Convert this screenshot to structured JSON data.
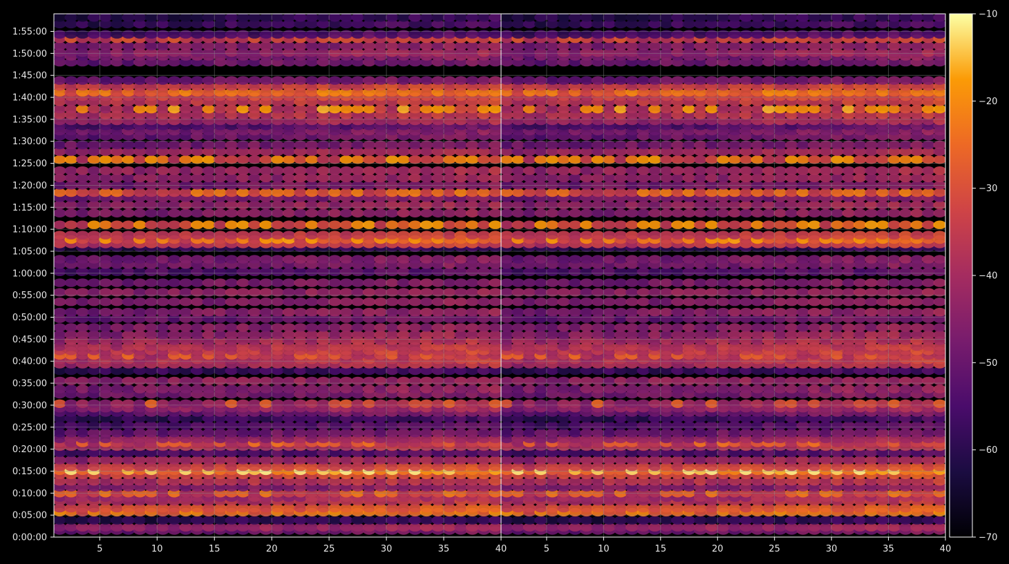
{
  "chart_data": {
    "type": "heatmap",
    "title": "",
    "xlabel": "",
    "ylabel": "",
    "colormap": "inferno",
    "background_color": "#000000",
    "grid": true,
    "grid_color": "#8a8a8a",
    "panels": [
      {
        "name": "",
        "xlim": [
          1,
          40
        ],
        "x_ticks": [
          5,
          10,
          15,
          20,
          25,
          30,
          35,
          40
        ],
        "x_tick_labels": [
          "5",
          "10",
          "15",
          "20",
          "25",
          "30",
          "35",
          "40"
        ]
      },
      {
        "name": "",
        "xlim": [
          1,
          40
        ],
        "x_ticks": [
          5,
          10,
          15,
          20,
          25,
          30,
          35,
          40
        ],
        "x_tick_labels": [
          "5",
          "10",
          "15",
          "20",
          "25",
          "30",
          "35",
          "40"
        ]
      }
    ],
    "y_axis": {
      "unit": "seconds",
      "ylim": [
        0,
        7140
      ],
      "ticks": [
        0,
        300,
        600,
        900,
        1200,
        1500,
        1800,
        2100,
        2400,
        2700,
        3000,
        3300,
        3600,
        3900,
        4200,
        4500,
        4800,
        5100,
        5400,
        5700,
        6000,
        6300,
        6600,
        6900
      ],
      "tick_labels": [
        "0:00:00",
        "0:05:00",
        "0:10:00",
        "0:15:00",
        "0:20:00",
        "0:25:00",
        "0:30:00",
        "0:35:00",
        "0:40:00",
        "0:45:00",
        "0:50:00",
        "0:55:00",
        "1:00:00",
        "1:05:00",
        "1:10:00",
        "1:15:00",
        "1:20:00",
        "1:25:00",
        "1:30:00",
        "1:35:00",
        "1:40:00",
        "1:45:00",
        "1:50:00",
        "1:55:00"
      ]
    },
    "colorbar": {
      "range": [
        -70,
        -10
      ],
      "ticks": [
        -10,
        -20,
        -30,
        -40,
        -50,
        -60,
        -70
      ],
      "tick_labels": [
        "−10",
        "−20",
        "−30",
        "−40",
        "−50",
        "−60",
        "−70"
      ]
    },
    "rows": [
      {
        "t": 90,
        "level": -52
      },
      {
        "t": 135,
        "level": -45
      },
      {
        "t": 230,
        "level": -62
      },
      {
        "t": 340,
        "level": -30,
        "peak": -22
      },
      {
        "t": 395,
        "level": -33
      },
      {
        "t": 490,
        "level": -40
      },
      {
        "t": 540,
        "level": -44
      },
      {
        "t": 600,
        "level": -38,
        "peak": -24
      },
      {
        "t": 680,
        "level": -48
      },
      {
        "t": 760,
        "level": -40
      },
      {
        "t": 850,
        "level": -34
      },
      {
        "t": 905,
        "level": -28,
        "peak": -14
      },
      {
        "t": 960,
        "level": -36
      },
      {
        "t": 1050,
        "level": -44
      },
      {
        "t": 1150,
        "level": -56
      },
      {
        "t": 1235,
        "level": -40
      },
      {
        "t": 1285,
        "level": -40,
        "peak": -26
      },
      {
        "t": 1340,
        "level": -46
      },
      {
        "t": 1420,
        "level": -52
      },
      {
        "t": 1520,
        "level": -56
      },
      {
        "t": 1620,
        "level": -60
      },
      {
        "t": 1700,
        "level": -52
      },
      {
        "t": 1760,
        "level": -46
      },
      {
        "t": 1820,
        "level": -44,
        "peak": -28
      },
      {
        "t": 1950,
        "level": -50
      },
      {
        "t": 2020,
        "level": -48
      },
      {
        "t": 2130,
        "level": -46
      },
      {
        "t": 2270,
        "level": -60
      },
      {
        "t": 2360,
        "level": -42
      },
      {
        "t": 2420,
        "level": -40
      },
      {
        "t": 2480,
        "level": -40,
        "peak": -26
      },
      {
        "t": 2540,
        "level": -38
      },
      {
        "t": 2600,
        "level": -40
      },
      {
        "t": 2680,
        "level": -42
      },
      {
        "t": 2760,
        "level": -46
      },
      {
        "t": 2860,
        "level": -48
      },
      {
        "t": 2980,
        "level": -52
      },
      {
        "t": 3070,
        "level": -48
      },
      {
        "t": 3210,
        "level": -48
      },
      {
        "t": 3340,
        "level": -46
      },
      {
        "t": 3470,
        "level": -50
      },
      {
        "t": 3620,
        "level": -56
      },
      {
        "t": 3720,
        "level": -50
      },
      {
        "t": 3790,
        "level": -50
      },
      {
        "t": 3950,
        "level": -62
      },
      {
        "t": 4000,
        "level": -38
      },
      {
        "t": 4060,
        "level": -34,
        "peak": -20
      },
      {
        "t": 4120,
        "level": -38
      },
      {
        "t": 4260,
        "level": -36,
        "peak": -20
      },
      {
        "t": 4420,
        "level": -48
      },
      {
        "t": 4530,
        "level": -46
      },
      {
        "t": 4630,
        "level": -50
      },
      {
        "t": 4700,
        "level": -36,
        "peak": -24
      },
      {
        "t": 4800,
        "level": -50
      },
      {
        "t": 4900,
        "level": -46
      },
      {
        "t": 5000,
        "level": -44
      },
      {
        "t": 5150,
        "level": -38,
        "peak": -20
      },
      {
        "t": 5260,
        "level": -44
      },
      {
        "t": 5350,
        "level": -50
      },
      {
        "t": 5470,
        "level": -52
      },
      {
        "t": 5540,
        "level": -50
      },
      {
        "t": 5610,
        "level": -56
      },
      {
        "t": 5680,
        "level": -44
      },
      {
        "t": 5760,
        "level": -40
      },
      {
        "t": 5840,
        "level": -40,
        "peak": -18
      },
      {
        "t": 5940,
        "level": -38
      },
      {
        "t": 6010,
        "level": -36
      },
      {
        "t": 6070,
        "level": -30,
        "peak": -22
      },
      {
        "t": 6150,
        "level": -36
      },
      {
        "t": 6230,
        "level": -52
      },
      {
        "t": 6480,
        "level": -52
      },
      {
        "t": 6560,
        "level": -50
      },
      {
        "t": 6610,
        "level": -46
      },
      {
        "t": 6700,
        "level": -48
      },
      {
        "t": 6800,
        "level": -40,
        "peak": -30
      },
      {
        "t": 6860,
        "level": -58
      },
      {
        "t": 7000,
        "level": -60
      },
      {
        "t": 7090,
        "level": -62
      }
    ]
  }
}
